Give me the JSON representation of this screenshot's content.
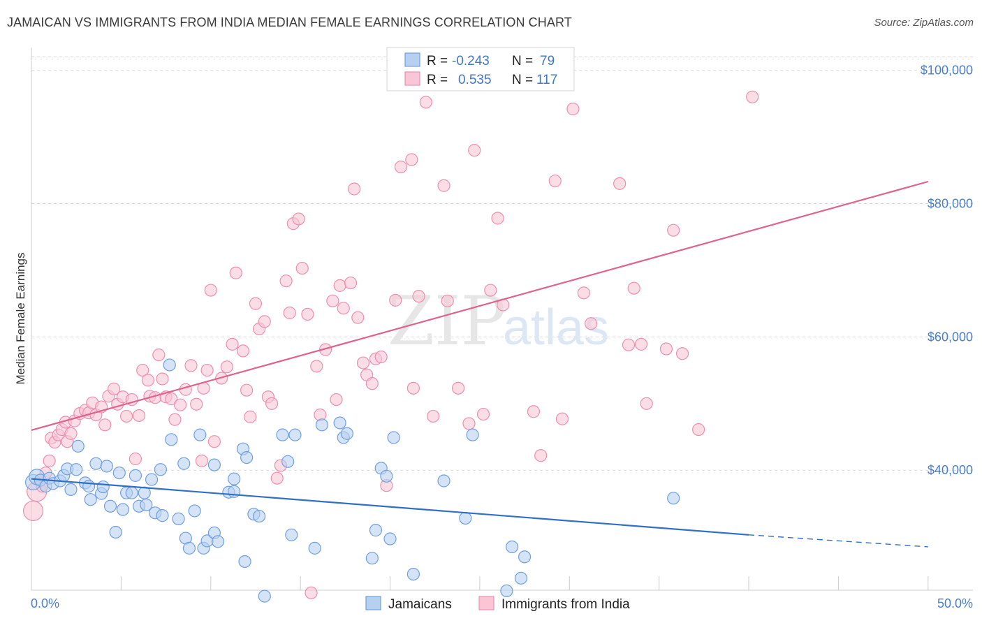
{
  "title": "JAMAICAN VS IMMIGRANTS FROM INDIA MEDIAN FEMALE EARNINGS CORRELATION CHART",
  "source": "Source: ZipAtlas.com",
  "watermark": {
    "zip": "ZIP",
    "atlas": "atlas"
  },
  "legend": {
    "r_label": "R =",
    "n_label": "N =",
    "series": [
      {
        "r": "-0.243",
        "n": "79"
      },
      {
        "r": "0.535",
        "n": "117"
      }
    ]
  },
  "colors": {
    "jamaicans_fill": "#b8d0f0",
    "jamaicans_stroke": "#6f9fe0",
    "jamaicans_line": "#2f6fc8",
    "india_fill": "#f9c6d6",
    "india_stroke": "#ec8fae",
    "india_line": "#e0628a",
    "tick_label": "#4a7fc8",
    "grid": "#d8d8d8"
  },
  "chart_data": {
    "type": "scatter",
    "title": "JAMAICAN VS IMMIGRANTS FROM INDIA MEDIAN FEMALE EARNINGS CORRELATION CHART",
    "ylabel": "Median Female Earnings",
    "xlabel": "",
    "x_unit": "percent",
    "xlim": [
      0,
      52.5
    ],
    "ylim": [
      22000,
      103000
    ],
    "x_tick_labels": [
      {
        "value": 0,
        "label": "0.0%"
      },
      {
        "value": 50,
        "label": "50.0%"
      }
    ],
    "x_minor_ticks": [
      0,
      5,
      10,
      15,
      20,
      25,
      30,
      35,
      40,
      45,
      50
    ],
    "y_ticks": [
      {
        "value": 40000,
        "label": "$40,000"
      },
      {
        "value": 60000,
        "label": "$60,000"
      },
      {
        "value": 80000,
        "label": "$80,000"
      },
      {
        "value": 100000,
        "label": "$100,000"
      }
    ],
    "grid": true,
    "legend_position": "top-center",
    "series": [
      {
        "name": "Jamaicans",
        "color": "#6f9fe0",
        "trend": {
          "x0": 0,
          "y0": 38700,
          "x1": 40,
          "y1": 30300,
          "dash_to_x": 50,
          "dash_to_y": 28500
        },
        "points": [
          [
            0.1,
            38200
          ],
          [
            0.3,
            39000
          ],
          [
            0.5,
            38500
          ],
          [
            0.8,
            37600
          ],
          [
            1.0,
            38800
          ],
          [
            1.2,
            38000
          ],
          [
            1.6,
            38400
          ],
          [
            1.8,
            39200
          ],
          [
            2.0,
            40200
          ],
          [
            2.2,
            37100
          ],
          [
            2.5,
            40100
          ],
          [
            2.6,
            43600
          ],
          [
            3.0,
            38100
          ],
          [
            3.2,
            37600
          ],
          [
            3.3,
            35600
          ],
          [
            3.6,
            41000
          ],
          [
            3.9,
            36500
          ],
          [
            4.0,
            37500
          ],
          [
            4.2,
            40600
          ],
          [
            4.4,
            34600
          ],
          [
            4.7,
            30700
          ],
          [
            4.9,
            39600
          ],
          [
            5.1,
            34100
          ],
          [
            5.3,
            36600
          ],
          [
            5.6,
            36600
          ],
          [
            5.8,
            39200
          ],
          [
            6.0,
            34600
          ],
          [
            6.3,
            36600
          ],
          [
            6.4,
            34800
          ],
          [
            6.7,
            38600
          ],
          [
            6.9,
            33600
          ],
          [
            7.2,
            40100
          ],
          [
            7.3,
            33200
          ],
          [
            7.8,
            44600
          ],
          [
            7.7,
            55800
          ],
          [
            8.2,
            32700
          ],
          [
            8.5,
            41000
          ],
          [
            8.6,
            29800
          ],
          [
            8.8,
            28300
          ],
          [
            9.1,
            33900
          ],
          [
            9.4,
            45300
          ],
          [
            9.6,
            28300
          ],
          [
            9.8,
            29400
          ],
          [
            10.2,
            30600
          ],
          [
            10.4,
            29300
          ],
          [
            10.2,
            40800
          ],
          [
            11.0,
            36700
          ],
          [
            11.3,
            38700
          ],
          [
            11.3,
            36800
          ],
          [
            11.8,
            43200
          ],
          [
            11.9,
            26300
          ],
          [
            12.0,
            41900
          ],
          [
            12.4,
            33400
          ],
          [
            12.7,
            33100
          ],
          [
            13.0,
            21100
          ],
          [
            14.0,
            45300
          ],
          [
            14.3,
            41300
          ],
          [
            14.5,
            30300
          ],
          [
            14.7,
            45300
          ],
          [
            15.8,
            28300
          ],
          [
            16.2,
            46800
          ],
          [
            17.2,
            47100
          ],
          [
            17.4,
            44900
          ],
          [
            17.6,
            45500
          ],
          [
            19.0,
            26800
          ],
          [
            19.2,
            31000
          ],
          [
            19.5,
            40300
          ],
          [
            19.8,
            39100
          ],
          [
            20.0,
            29700
          ],
          [
            20.2,
            44900
          ],
          [
            21.3,
            24400
          ],
          [
            23.0,
            38400
          ],
          [
            24.2,
            32800
          ],
          [
            24.6,
            45300
          ],
          [
            26.8,
            28500
          ],
          [
            26.5,
            21900
          ],
          [
            27.3,
            23800
          ],
          [
            27.5,
            27000
          ],
          [
            35.8,
            35800
          ]
        ]
      },
      {
        "name": "Immigrants from India",
        "color": "#ec8fae",
        "trend": {
          "x0": 0,
          "y0": 46000,
          "x1": 50,
          "y1": 83300
        },
        "points": [
          [
            0.1,
            33900
          ],
          [
            0.3,
            36800
          ],
          [
            0.6,
            37600
          ],
          [
            0.8,
            39600
          ],
          [
            1.0,
            41400
          ],
          [
            1.1,
            44800
          ],
          [
            1.3,
            44200
          ],
          [
            1.5,
            45300
          ],
          [
            1.7,
            46100
          ],
          [
            1.9,
            47200
          ],
          [
            2.0,
            44300
          ],
          [
            2.2,
            45500
          ],
          [
            2.4,
            47400
          ],
          [
            2.7,
            48500
          ],
          [
            3.0,
            49000
          ],
          [
            3.2,
            48600
          ],
          [
            3.4,
            50100
          ],
          [
            3.6,
            48300
          ],
          [
            3.9,
            49500
          ],
          [
            4.1,
            46800
          ],
          [
            4.3,
            51100
          ],
          [
            4.6,
            52200
          ],
          [
            4.8,
            49900
          ],
          [
            5.1,
            51000
          ],
          [
            5.3,
            48100
          ],
          [
            5.6,
            50600
          ],
          [
            5.8,
            41700
          ],
          [
            6.0,
            48200
          ],
          [
            6.2,
            55000
          ],
          [
            6.5,
            53500
          ],
          [
            6.6,
            51100
          ],
          [
            6.9,
            50900
          ],
          [
            7.1,
            57300
          ],
          [
            7.3,
            53700
          ],
          [
            7.5,
            51000
          ],
          [
            7.8,
            50700
          ],
          [
            8.0,
            47600
          ],
          [
            8.3,
            49800
          ],
          [
            8.6,
            52100
          ],
          [
            8.9,
            55700
          ],
          [
            9.2,
            49900
          ],
          [
            9.5,
            41400
          ],
          [
            9.6,
            52300
          ],
          [
            9.8,
            55000
          ],
          [
            10.0,
            67000
          ],
          [
            10.2,
            44300
          ],
          [
            10.6,
            53800
          ],
          [
            10.9,
            55500
          ],
          [
            11.2,
            58900
          ],
          [
            11.4,
            69600
          ],
          [
            11.8,
            57900
          ],
          [
            12.0,
            52000
          ],
          [
            12.2,
            48000
          ],
          [
            12.5,
            65000
          ],
          [
            12.7,
            61200
          ],
          [
            13.0,
            62300
          ],
          [
            13.2,
            51000
          ],
          [
            13.4,
            50000
          ],
          [
            13.7,
            38800
          ],
          [
            13.9,
            40700
          ],
          [
            14.2,
            68400
          ],
          [
            14.4,
            63600
          ],
          [
            14.6,
            77000
          ],
          [
            14.9,
            77700
          ],
          [
            15.1,
            70300
          ],
          [
            15.4,
            63400
          ],
          [
            15.6,
            21600
          ],
          [
            15.9,
            55600
          ],
          [
            16.1,
            48300
          ],
          [
            16.4,
            58100
          ],
          [
            16.8,
            65400
          ],
          [
            17.0,
            50600
          ],
          [
            17.2,
            67700
          ],
          [
            17.4,
            64300
          ],
          [
            17.8,
            68100
          ],
          [
            18.0,
            82200
          ],
          [
            18.2,
            62900
          ],
          [
            18.5,
            56100
          ],
          [
            18.7,
            54300
          ],
          [
            19.0,
            53000
          ],
          [
            19.2,
            56700
          ],
          [
            19.5,
            57000
          ],
          [
            19.8,
            37700
          ],
          [
            20.3,
            65500
          ],
          [
            20.6,
            85500
          ],
          [
            21.2,
            86600
          ],
          [
            21.3,
            52300
          ],
          [
            21.6,
            66100
          ],
          [
            22.0,
            95200
          ],
          [
            22.4,
            48100
          ],
          [
            23.0,
            82700
          ],
          [
            23.2,
            65400
          ],
          [
            23.8,
            52300
          ],
          [
            24.4,
            47000
          ],
          [
            24.7,
            88000
          ],
          [
            25.2,
            48400
          ],
          [
            25.6,
            67000
          ],
          [
            26.0,
            77800
          ],
          [
            26.3,
            64800
          ],
          [
            28.0,
            48800
          ],
          [
            28.4,
            42200
          ],
          [
            29.2,
            83400
          ],
          [
            29.6,
            47700
          ],
          [
            30.2,
            94200
          ],
          [
            30.8,
            66600
          ],
          [
            31.2,
            62000
          ],
          [
            32.8,
            83000
          ],
          [
            33.3,
            58800
          ],
          [
            33.6,
            67300
          ],
          [
            34.0,
            58900
          ],
          [
            34.3,
            50000
          ],
          [
            35.4,
            58200
          ],
          [
            35.8,
            76000
          ],
          [
            36.3,
            57500
          ],
          [
            37.2,
            46100
          ],
          [
            40.2,
            96000
          ]
        ]
      }
    ]
  },
  "bottom_legend": [
    {
      "label": "Jamaicans"
    },
    {
      "label": "Immigrants from India"
    }
  ]
}
